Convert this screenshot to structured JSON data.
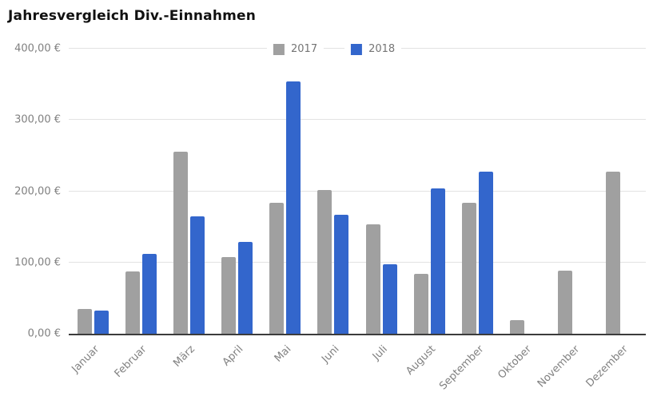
{
  "title": "Jahresvergleich Div.-Einnahmen",
  "chart_data": {
    "type": "bar",
    "title": "Jahresvergleich Div.-Einnahmen",
    "categories": [
      "Januar",
      "Februar",
      "März",
      "April",
      "Mai",
      "Juni",
      "Juli",
      "August",
      "September",
      "Oktober",
      "November",
      "Dezember"
    ],
    "series": [
      {
        "name": "2017",
        "color": "#a0a0a0",
        "values": [
          35,
          87,
          255,
          108,
          184,
          202,
          154,
          84,
          184,
          19,
          88,
          227
        ]
      },
      {
        "name": "2018",
        "color": "#3366cc",
        "values": [
          33,
          112,
          165,
          129,
          354,
          167,
          97,
          204,
          227,
          0,
          0,
          0
        ]
      }
    ],
    "xlabel": "",
    "ylabel": "",
    "ylim": [
      0,
      400
    ],
    "y_ticks": [
      "0,00 €",
      "100,00 €",
      "200,00 €",
      "300,00 €",
      "400,00 €"
    ],
    "grid": true,
    "legend_position": "top-center",
    "colors": {
      "grid": "#e2e2e2",
      "axis": "#3c3c3c",
      "tick_text": "#808080",
      "title_text": "#111111"
    }
  }
}
